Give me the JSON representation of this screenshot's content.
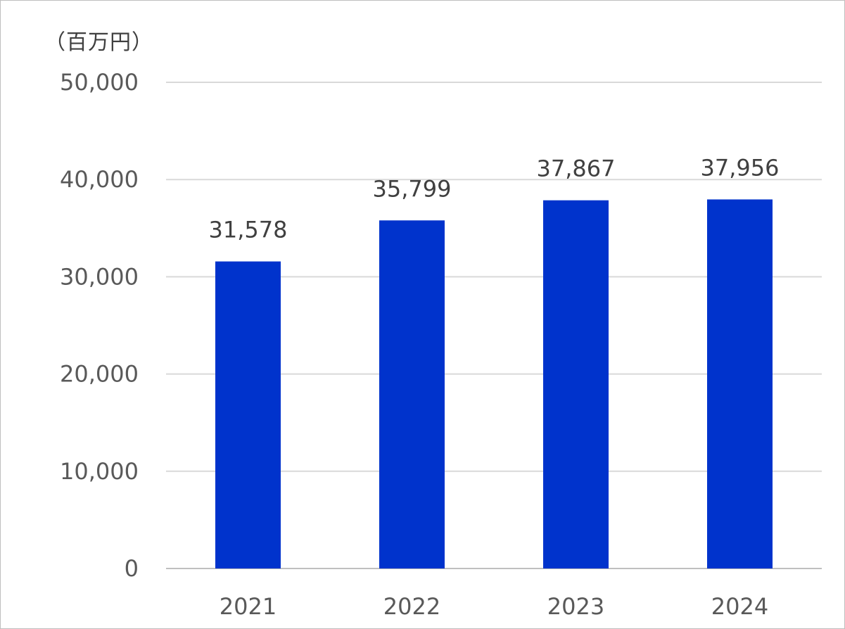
{
  "chart_data": {
    "type": "bar",
    "ylabel": "（百万円）",
    "categories": [
      "2021",
      "2022",
      "2023",
      "2024"
    ],
    "values": [
      31578,
      35799,
      37867,
      37956
    ],
    "data_labels": [
      "31,578",
      "35,799",
      "37,867",
      "37,956"
    ],
    "ylim": [
      0,
      50000
    ],
    "yticks": [
      0,
      10000,
      20000,
      30000,
      40000,
      50000
    ],
    "ytick_labels": [
      "0",
      "10,000",
      "20,000",
      "30,000",
      "40,000",
      "50,000"
    ],
    "bar_color": "#0033CC",
    "grid": true,
    "legend": "none"
  }
}
